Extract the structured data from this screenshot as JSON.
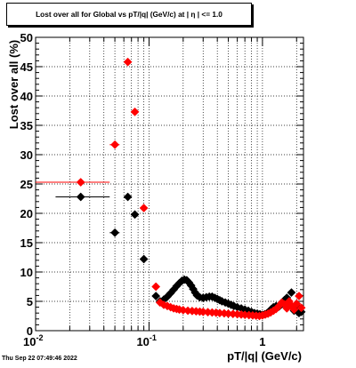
{
  "chart_data": {
    "type": "scatter",
    "title": "Lost over all for Global vs pT/|q| (GeV/c) at |  η | <= 1.0",
    "xlabel": "pT/|q| (GeV/c)",
    "ylabel": "Lost over all (%)",
    "xscale": "log",
    "xlim": [
      0.01,
      2.3
    ],
    "ylim": [
      0,
      50
    ],
    "grid": true,
    "x_ticks": [
      {
        "value": 0.01,
        "base": "10",
        "exp": "-2"
      },
      {
        "value": 0.1,
        "base": "10",
        "exp": "-1"
      },
      {
        "value": 1,
        "base": "1",
        "exp": ""
      }
    ],
    "y_ticks": [
      0,
      5,
      10,
      15,
      20,
      25,
      30,
      35,
      40,
      45,
      50
    ],
    "series": [
      {
        "color": "#000000",
        "points": [
          {
            "x": 0.025,
            "y": 22.8,
            "xerr": [
              0.015,
              0.045
            ]
          },
          {
            "x": 0.05,
            "y": 16.7,
            "xerr": [
              0.045,
              0.055
            ]
          },
          {
            "x": 0.065,
            "y": 22.8
          },
          {
            "x": 0.075,
            "y": 19.8
          },
          {
            "x": 0.09,
            "y": 12.2,
            "xerr": [
              0.085,
              0.095
            ]
          },
          {
            "x": 0.115,
            "y": 5.9
          },
          {
            "x": 0.125,
            "y": 5.0
          },
          {
            "x": 0.135,
            "y": 5.3
          },
          {
            "x": 0.145,
            "y": 5.8
          },
          {
            "x": 0.155,
            "y": 6.4
          },
          {
            "x": 0.165,
            "y": 7.0
          },
          {
            "x": 0.175,
            "y": 7.6
          },
          {
            "x": 0.185,
            "y": 8.1
          },
          {
            "x": 0.195,
            "y": 8.5
          },
          {
            "x": 0.205,
            "y": 8.7
          },
          {
            "x": 0.215,
            "y": 8.6
          },
          {
            "x": 0.225,
            "y": 8.2
          },
          {
            "x": 0.235,
            "y": 7.7
          },
          {
            "x": 0.245,
            "y": 7.1
          },
          {
            "x": 0.255,
            "y": 6.5
          },
          {
            "x": 0.265,
            "y": 6.0
          },
          {
            "x": 0.28,
            "y": 5.7
          },
          {
            "x": 0.3,
            "y": 5.6
          },
          {
            "x": 0.32,
            "y": 5.7
          },
          {
            "x": 0.34,
            "y": 5.8
          },
          {
            "x": 0.36,
            "y": 5.8
          },
          {
            "x": 0.38,
            "y": 5.6
          },
          {
            "x": 0.4,
            "y": 5.4
          },
          {
            "x": 0.42,
            "y": 5.2
          },
          {
            "x": 0.44,
            "y": 5.0
          },
          {
            "x": 0.47,
            "y": 4.8
          },
          {
            "x": 0.5,
            "y": 4.6
          },
          {
            "x": 0.53,
            "y": 4.4
          },
          {
            "x": 0.56,
            "y": 4.2
          },
          {
            "x": 0.6,
            "y": 4.0
          },
          {
            "x": 0.65,
            "y": 3.8
          },
          {
            "x": 0.7,
            "y": 3.6
          },
          {
            "x": 0.75,
            "y": 3.4
          },
          {
            "x": 0.8,
            "y": 3.2
          },
          {
            "x": 0.85,
            "y": 3.0
          },
          {
            "x": 0.9,
            "y": 2.9
          },
          {
            "x": 0.95,
            "y": 2.8
          },
          {
            "x": 1.0,
            "y": 2.7
          },
          {
            "x": 1.05,
            "y": 2.8
          },
          {
            "x": 1.1,
            "y": 3.0
          },
          {
            "x": 1.15,
            "y": 3.3
          },
          {
            "x": 1.2,
            "y": 3.7
          },
          {
            "x": 1.25,
            "y": 4.0
          },
          {
            "x": 1.32,
            "y": 4.2
          },
          {
            "x": 1.4,
            "y": 4.1
          },
          {
            "x": 1.48,
            "y": 4.5
          },
          {
            "x": 1.56,
            "y": 5.2
          },
          {
            "x": 1.64,
            "y": 5.6
          },
          {
            "x": 1.72,
            "y": 4.6
          },
          {
            "x": 1.8,
            "y": 6.5
          },
          {
            "x": 1.9,
            "y": 3.4
          },
          {
            "x": 2.0,
            "y": 4.2
          },
          {
            "x": 2.1,
            "y": 3.0
          },
          {
            "x": 2.2,
            "y": 3.2
          }
        ]
      },
      {
        "color": "#ff0000",
        "points": [
          {
            "x": 0.025,
            "y": 25.3,
            "xerr": [
              0.01,
              0.045
            ]
          },
          {
            "x": 0.05,
            "y": 31.7,
            "xerr": [
              0.045,
              0.055
            ]
          },
          {
            "x": 0.065,
            "y": 45.8
          },
          {
            "x": 0.075,
            "y": 37.3
          },
          {
            "x": 0.09,
            "y": 20.9,
            "xerr": [
              0.085,
              0.095
            ]
          },
          {
            "x": 0.115,
            "y": 7.5
          },
          {
            "x": 0.125,
            "y": 4.8
          },
          {
            "x": 0.135,
            "y": 4.4
          },
          {
            "x": 0.145,
            "y": 4.2
          },
          {
            "x": 0.155,
            "y": 4.0
          },
          {
            "x": 0.165,
            "y": 3.8
          },
          {
            "x": 0.175,
            "y": 3.7
          },
          {
            "x": 0.185,
            "y": 3.6
          },
          {
            "x": 0.2,
            "y": 3.5
          },
          {
            "x": 0.22,
            "y": 3.4
          },
          {
            "x": 0.24,
            "y": 3.35
          },
          {
            "x": 0.26,
            "y": 3.3
          },
          {
            "x": 0.28,
            "y": 3.25
          },
          {
            "x": 0.3,
            "y": 3.2
          },
          {
            "x": 0.33,
            "y": 3.15
          },
          {
            "x": 0.36,
            "y": 3.1
          },
          {
            "x": 0.39,
            "y": 3.05
          },
          {
            "x": 0.42,
            "y": 3.0
          },
          {
            "x": 0.46,
            "y": 2.95
          },
          {
            "x": 0.5,
            "y": 2.9
          },
          {
            "x": 0.55,
            "y": 2.85
          },
          {
            "x": 0.6,
            "y": 2.8
          },
          {
            "x": 0.65,
            "y": 2.75
          },
          {
            "x": 0.7,
            "y": 2.7
          },
          {
            "x": 0.76,
            "y": 2.65
          },
          {
            "x": 0.82,
            "y": 2.6
          },
          {
            "x": 0.88,
            "y": 2.55
          },
          {
            "x": 0.94,
            "y": 2.5
          },
          {
            "x": 1.0,
            "y": 2.6
          },
          {
            "x": 1.06,
            "y": 2.75
          },
          {
            "x": 1.12,
            "y": 2.9
          },
          {
            "x": 1.18,
            "y": 3.1
          },
          {
            "x": 1.25,
            "y": 3.4
          },
          {
            "x": 1.32,
            "y": 3.7
          },
          {
            "x": 1.4,
            "y": 4.2
          },
          {
            "x": 1.48,
            "y": 4.8
          },
          {
            "x": 1.56,
            "y": 4.5
          },
          {
            "x": 1.64,
            "y": 3.8
          },
          {
            "x": 1.72,
            "y": 5.0
          },
          {
            "x": 1.8,
            "y": 4.3
          },
          {
            "x": 1.9,
            "y": 3.6
          },
          {
            "x": 2.0,
            "y": 4.6
          },
          {
            "x": 2.1,
            "y": 5.9
          },
          {
            "x": 2.2,
            "y": 3.9
          }
        ]
      }
    ]
  },
  "footer": "Thu Sep 22 07:49:46 2022"
}
